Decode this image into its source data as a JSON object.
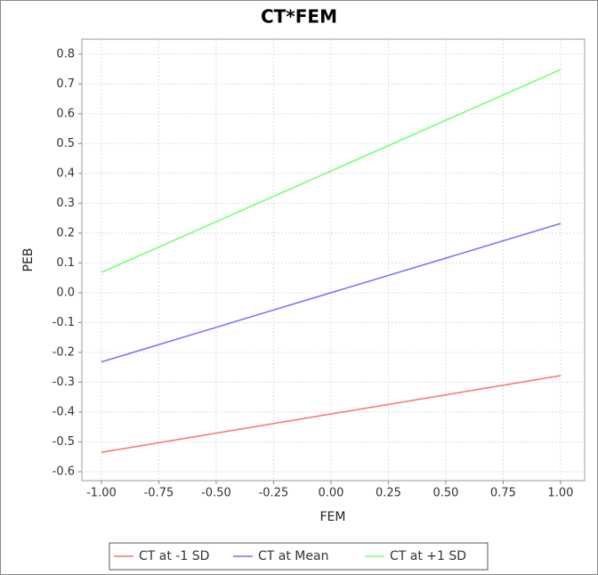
{
  "chart_data": {
    "type": "line",
    "title": "CT*FEM",
    "x_label": "FEM",
    "y_label": "PEB",
    "x": [
      -1,
      1
    ],
    "series": [
      {
        "name": "CT at -1 SD",
        "color": "#ff7070",
        "values": [
          -0.535,
          -0.278
        ]
      },
      {
        "name": "CT at Mean",
        "color": "#7070ff",
        "values": [
          -0.232,
          0.232
        ]
      },
      {
        "name": "CT at +1 SD",
        "color": "#70ff70",
        "values": [
          0.068,
          0.748
        ]
      }
    ],
    "xlim": [
      -1.085,
      1.105
    ],
    "xticks": [
      {
        "value": -1,
        "label": "-1.00"
      },
      {
        "value": -0.75,
        "label": "-0.75"
      },
      {
        "value": -0.5,
        "label": "-0.50"
      },
      {
        "value": -0.25,
        "label": "-0.25"
      },
      {
        "value": 0,
        "label": "0.00"
      },
      {
        "value": 0.25,
        "label": "0.25"
      },
      {
        "value": 0.5,
        "label": "0.50"
      },
      {
        "value": 0.75,
        "label": "0.75"
      },
      {
        "value": 1,
        "label": "1.00"
      }
    ],
    "ylim": [
      -0.63,
      0.85
    ],
    "yticks": [
      -0.6,
      -0.5,
      -0.4,
      -0.3,
      -0.2,
      -0.1,
      {
        "value": 0,
        "label": "0.0"
      },
      0.1,
      0.2,
      0.3,
      0.4,
      0.5,
      0.6,
      0.7,
      0.8
    ],
    "grid": true,
    "legend": "bottom"
  }
}
